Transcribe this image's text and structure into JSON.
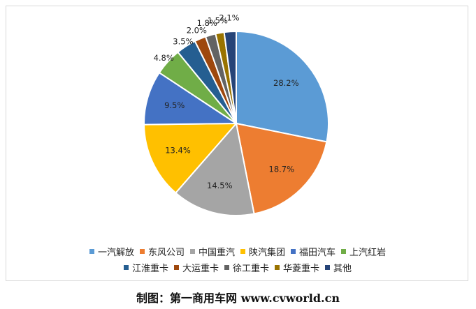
{
  "chart_data": {
    "type": "pie",
    "title": "",
    "categories": [
      "一汽解放",
      "东风公司",
      "中国重汽",
      "陕汽集团",
      "福田汽车",
      "上汽红岩",
      "江淮重卡",
      "大运重卡",
      "徐工重卡",
      "华菱重卡",
      "其他"
    ],
    "values": [
      28.2,
      18.7,
      14.5,
      13.4,
      9.5,
      4.8,
      3.5,
      2.0,
      1.8,
      1.5,
      2.1
    ],
    "labels": [
      "28.2%",
      "18.7%",
      "14.5%",
      "13.4%",
      "9.5%",
      "4.8%",
      "3.5%",
      "2.0%",
      "1.8%",
      "1.5%",
      "2.1%"
    ],
    "colors": [
      "#5B9BD5",
      "#ED7D31",
      "#A5A5A5",
      "#FFC000",
      "#4472C4",
      "#70AD47",
      "#255E91",
      "#9E480E",
      "#636363",
      "#997300",
      "#264478"
    ],
    "legend_position": "bottom",
    "start_angle_deg": 0,
    "direction": "clockwise"
  },
  "caption": "制图：第一商用车网 www.cvworld.cn"
}
